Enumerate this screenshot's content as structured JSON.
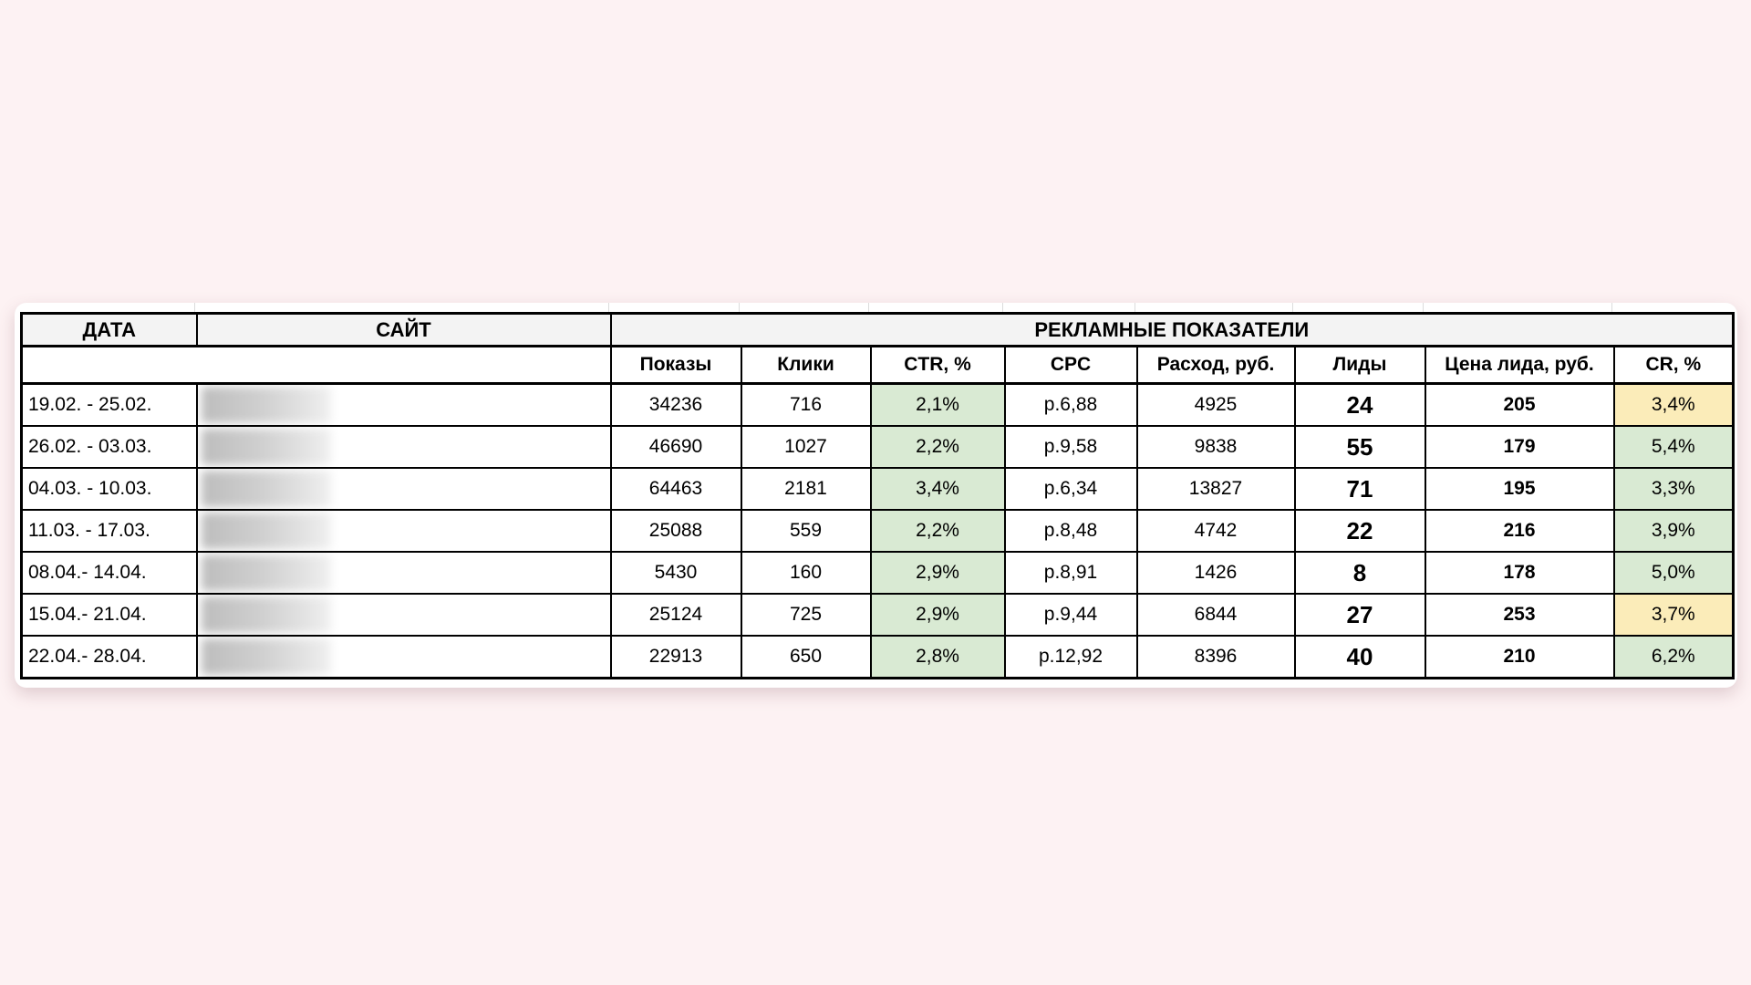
{
  "page": {
    "background": "#fdf2f3",
    "card_background": "#ffffff"
  },
  "colors": {
    "highlight_green": "#d9ead3",
    "highlight_yellow": "#fbecb9",
    "header_gray": "#f3f3f3",
    "border": "#000000"
  },
  "table": {
    "header": {
      "date": "ДАТА",
      "site": "САЙТ",
      "metrics_group": "РЕКЛАМНЫЕ ПОКАЗАТЕЛИ",
      "columns": [
        "Показы",
        "Клики",
        "CTR, %",
        "CPC",
        "Расход, руб.",
        "Лиды",
        "Цена лида, руб.",
        "CR, %"
      ]
    },
    "site_column_redacted": true
  },
  "chart_data": {
    "type": "table",
    "title": "РЕКЛАМНЫЕ ПОКАЗАТЕЛИ",
    "columns": [
      "ДАТА",
      "САЙТ",
      "Показы",
      "Клики",
      "CTR, %",
      "CPC",
      "Расход, руб.",
      "Лиды",
      "Цена лида, руб.",
      "CR, %"
    ],
    "highlight_legend": {
      "ctr_column": "green",
      "cr_column": "green or yellow per row"
    },
    "rows": [
      {
        "date": "19.02. - 25.02.",
        "site": "",
        "impressions": "34236",
        "clicks": "716",
        "ctr": "2,1%",
        "cpc": "р.6,88",
        "spend": "4925",
        "leads": "24",
        "cpl": "205",
        "cr": "3,4%",
        "cr_highlight": "yellow"
      },
      {
        "date": "26.02. - 03.03.",
        "site": "",
        "impressions": "46690",
        "clicks": "1027",
        "ctr": "2,2%",
        "cpc": "р.9,58",
        "spend": "9838",
        "leads": "55",
        "cpl": "179",
        "cr": "5,4%",
        "cr_highlight": "green"
      },
      {
        "date": "04.03. - 10.03.",
        "site": "",
        "impressions": "64463",
        "clicks": "2181",
        "ctr": "3,4%",
        "cpc": "р.6,34",
        "spend": "13827",
        "leads": "71",
        "cpl": "195",
        "cr": "3,3%",
        "cr_highlight": "green"
      },
      {
        "date": "11.03. - 17.03.",
        "site": "",
        "impressions": "25088",
        "clicks": "559",
        "ctr": "2,2%",
        "cpc": "р.8,48",
        "spend": "4742",
        "leads": "22",
        "cpl": "216",
        "cr": "3,9%",
        "cr_highlight": "green"
      },
      {
        "date": "08.04.- 14.04.",
        "site": "",
        "impressions": "5430",
        "clicks": "160",
        "ctr": "2,9%",
        "cpc": "р.8,91",
        "spend": "1426",
        "leads": "8",
        "cpl": "178",
        "cr": "5,0%",
        "cr_highlight": "green"
      },
      {
        "date": "15.04.- 21.04.",
        "site": "",
        "impressions": "25124",
        "clicks": "725",
        "ctr": "2,9%",
        "cpc": "р.9,44",
        "spend": "6844",
        "leads": "27",
        "cpl": "253",
        "cr": "3,7%",
        "cr_highlight": "yellow"
      },
      {
        "date": "22.04.- 28.04.",
        "site": "",
        "impressions": "22913",
        "clicks": "650",
        "ctr": "2,8%",
        "cpc": "р.12,92",
        "spend": "8396",
        "leads": "40",
        "cpl": "210",
        "cr": "6,2%",
        "cr_highlight": "green"
      }
    ]
  }
}
